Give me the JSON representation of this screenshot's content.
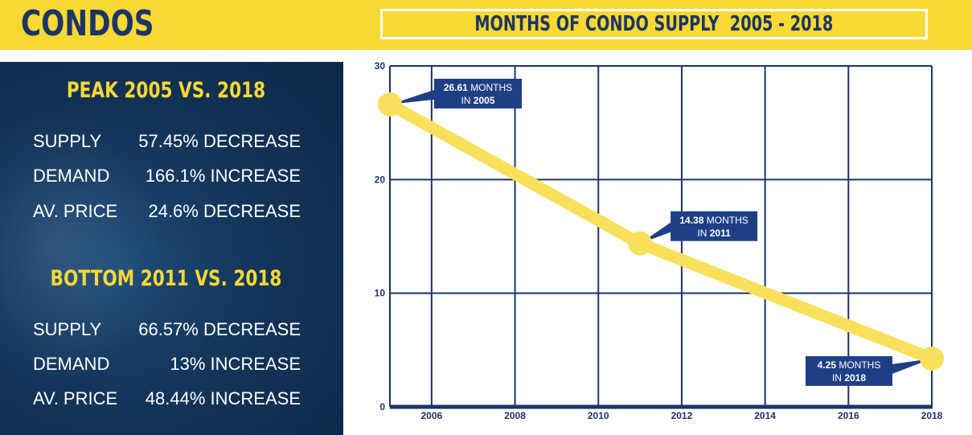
{
  "header": {
    "brand": "CONDOS",
    "chart_title": "MONTHS OF CONDO SUPPLY  2005 - 2018"
  },
  "colors": {
    "navy": "#1b3565",
    "yellow": "#f8d833",
    "line_yellow": "#f9e05c",
    "callout_bg": "#1f3f85"
  },
  "stats": {
    "peak": {
      "heading": "PEAK 2005 VS. 2018",
      "rows": [
        {
          "label": "SUPPLY",
          "value": "57.45% DECREASE"
        },
        {
          "label": "DEMAND",
          "value": "166.1% INCREASE"
        },
        {
          "label": "AV. PRICE",
          "value": "24.6% DECREASE"
        }
      ]
    },
    "bottom": {
      "heading": "BOTTOM 2011 VS. 2018",
      "rows": [
        {
          "label": "SUPPLY",
          "value": "66.57% DECREASE"
        },
        {
          "label": "DEMAND",
          "value": "13% INCREASE"
        },
        {
          "label": "AV. PRICE",
          "value": "48.44% INCREASE"
        }
      ]
    }
  },
  "chart_data": {
    "type": "line",
    "title": "MONTHS OF CONDO SUPPLY  2005 - 2018",
    "xlabel": "",
    "ylabel": "",
    "x": [
      2005,
      2011,
      2018
    ],
    "series": [
      {
        "values": [
          26.61,
          14.38,
          4.25
        ]
      }
    ],
    "xlim": [
      2005,
      2018
    ],
    "ylim": [
      0,
      30
    ],
    "xticks": [
      2006,
      2008,
      2010,
      2012,
      2014,
      2016,
      2018
    ],
    "yticks": [
      0,
      10,
      20,
      30
    ],
    "grid": true,
    "annotations": [
      {
        "x": 2005,
        "y": 26.61,
        "value": "26.61",
        "text": "MONTHS",
        "sub_prefix": "IN ",
        "sub_value": "2005"
      },
      {
        "x": 2011,
        "y": 14.38,
        "value": "14.38",
        "text": "MONTHS",
        "sub_prefix": "IN ",
        "sub_value": "2011"
      },
      {
        "x": 2018,
        "y": 4.25,
        "value": "4.25",
        "text": "MONTHS",
        "sub_prefix": "IN ",
        "sub_value": "2018"
      }
    ]
  }
}
